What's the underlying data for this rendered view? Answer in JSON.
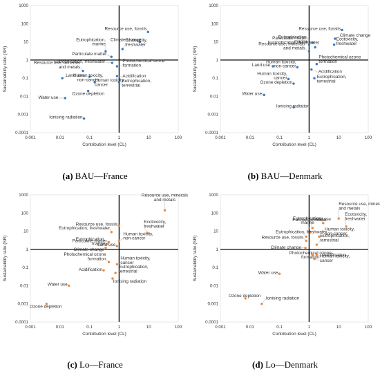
{
  "panels": [
    {
      "caption_letter": "(a)",
      "caption_text": "BAU—France",
      "color": "#3a78c2",
      "chart_data": {
        "type": "scatter",
        "xlabel": "Contribution level (CL)",
        "ylabel": "Sustainability ratio (SR)",
        "xscale": "log",
        "yscale": "log",
        "xlim": [
          0.001,
          100
        ],
        "ylim": [
          0.0001,
          1000
        ],
        "xticks": [
          "0.001",
          "0.01",
          "0.1",
          "1",
          "10",
          "100"
        ],
        "yticks": [
          "0.0001",
          "0.001",
          "0.01",
          "0.1",
          "1",
          "10",
          "100",
          "1000"
        ],
        "points": [
          {
            "label": "Resource use, fossils",
            "x": 9.5,
            "y": 35
          },
          {
            "label": "Climate change",
            "x": 5.0,
            "y": 10
          },
          {
            "label": "Eutrophication, marine",
            "x": 0.35,
            "y": 3
          },
          {
            "label": "Ecotoxicity, freshwater",
            "x": 1.3,
            "y": 4
          },
          {
            "label": "Particulate matter",
            "x": 0.55,
            "y": 1.5
          },
          {
            "label": "Eutrophication, freshwater",
            "x": 0.58,
            "y": 0.7
          },
          {
            "label": "Resource use, minerals and metals",
            "x": 0.06,
            "y": 0.25
          },
          {
            "label": "Photochemical ozone formation",
            "x": 0.85,
            "y": 0.45
          },
          {
            "label": "Land use",
            "x": 0.012,
            "y": 0.1
          },
          {
            "label": "Human toxicity, non-cancer",
            "x": 0.1,
            "y": 0.12
          },
          {
            "label": "Acidification",
            "x": 0.85,
            "y": 0.13
          },
          {
            "label": "Human toxicity, cancer",
            "x": 0.15,
            "y": 0.06
          },
          {
            "label": "Eutrophication, terrestrial",
            "x": 1.0,
            "y": 0.06
          },
          {
            "label": "Water use",
            "x": 0.015,
            "y": 0.008
          },
          {
            "label": "Ozone depletion",
            "x": 0.09,
            "y": 0.02
          },
          {
            "label": "Ionising radiation",
            "x": 0.065,
            "y": 0.0006
          }
        ]
      }
    },
    {
      "caption_letter": "(b)",
      "caption_text": "BAU—Denmark",
      "color": "#3a78c2",
      "chart_data": {
        "type": "scatter",
        "xlabel": "Contribution level (CL)",
        "ylabel": "Sustainability ratio (SR)",
        "xscale": "log",
        "yscale": "log",
        "xlim": [
          0.001,
          100
        ],
        "ylim": [
          0.0001,
          1000
        ],
        "xticks": [
          "0.001",
          "0.01",
          "0.1",
          "1",
          "10",
          "100"
        ],
        "yticks": [
          "0.0001",
          "0.001",
          "0.01",
          "0.1",
          "1",
          "10",
          "100",
          "1000"
        ],
        "points": [
          {
            "label": "Resource use, fossils",
            "x": 13,
            "y": 45
          },
          {
            "label": "Particulate matter",
            "x": 1.3,
            "y": 9
          },
          {
            "label": "Climate change",
            "x": 7.5,
            "y": 15
          },
          {
            "label": "Eutrophication, marine",
            "x": 1.0,
            "y": 7
          },
          {
            "label": "Ecotoxicity, freshwater",
            "x": 7,
            "y": 7
          },
          {
            "label": "Eutrophication, freshwater",
            "x": 1.6,
            "y": 5
          },
          {
            "label": "Resource use, minerals and metals",
            "x": 1.0,
            "y": 3
          },
          {
            "label": "Photochemical ozone formation",
            "x": 1.8,
            "y": 0.6
          },
          {
            "label": "Land use",
            "x": 0.06,
            "y": 0.45
          },
          {
            "label": "Human toxicity, non-cancer",
            "x": 0.4,
            "y": 0.4
          },
          {
            "label": "Acidification",
            "x": 1.2,
            "y": 0.3
          },
          {
            "label": "Human toxicity, cancer",
            "x": 0.2,
            "y": 0.09
          },
          {
            "label": "Ozone depletion",
            "x": 0.3,
            "y": 0.05
          },
          {
            "label": "Eutrophication, terrestrial",
            "x": 1.5,
            "y": 0.1
          },
          {
            "label": "Water use",
            "x": 0.03,
            "y": 0.012
          },
          {
            "label": "Ionising radiation",
            "x": 0.3,
            "y": 0.0025
          }
        ]
      }
    },
    {
      "caption_letter": "(c)",
      "caption_text": "Lo—France",
      "color": "#ee8a3c",
      "chart_data": {
        "type": "scatter",
        "xlabel": "Contribution level (CL)",
        "ylabel": "Sustainability ratio (SR)",
        "xscale": "log",
        "yscale": "log",
        "xlim": [
          0.001,
          100
        ],
        "ylim": [
          0.0001,
          1000
        ],
        "xticks": [
          "0.001",
          "0.01",
          "0.1",
          "1",
          "10",
          "100"
        ],
        "yticks": [
          "0.0001",
          "0.001",
          "0.01",
          "0.1",
          "1",
          "10",
          "100",
          "1000"
        ],
        "points": [
          {
            "label": "Resource use, minerals and metals",
            "x": 35,
            "y": 140
          },
          {
            "label": "Resource use, fossils",
            "x": 1.0,
            "y": 20
          },
          {
            "label": "Ecotoxicity, freshwater",
            "x": 9,
            "y": 8
          },
          {
            "label": "Eutrophication, freshwater",
            "x": 0.55,
            "y": 9
          },
          {
            "label": "Particulate matter",
            "x": 0.45,
            "y": 2.5
          },
          {
            "label": "Eutrophication, marine",
            "x": 0.4,
            "y": 2
          },
          {
            "label": "Climate change",
            "x": 0.35,
            "y": 1.2
          },
          {
            "label": "Land use",
            "x": 0.85,
            "y": 1.5
          },
          {
            "label": "Human toxicity, non-cancer",
            "x": 1.0,
            "y": 3
          },
          {
            "label": "Photochemical ozone formation",
            "x": 0.45,
            "y": 0.2
          },
          {
            "label": "Human toxicity, cancer",
            "x": 0.85,
            "y": 0.15
          },
          {
            "label": "Acidification",
            "x": 0.3,
            "y": 0.07
          },
          {
            "label": "Eutrophication, terrestrial",
            "x": 0.75,
            "y": 0.05
          },
          {
            "label": "Ionising radiation",
            "x": 0.6,
            "y": 0.025
          },
          {
            "label": "Water use",
            "x": 0.02,
            "y": 0.01
          },
          {
            "label": "Ozone depletion",
            "x": 0.0035,
            "y": 0.001
          }
        ]
      }
    },
    {
      "caption_letter": "(d)",
      "caption_text": "Lo—Denmark",
      "color": "#ee8a3c",
      "chart_data": {
        "type": "scatter",
        "xlabel": "Contribution level (CL)",
        "ylabel": "Sustainability ratio (SR)",
        "xscale": "log",
        "yscale": "log",
        "xlim": [
          0.001,
          100
        ],
        "ylim": [
          0.0001,
          1000
        ],
        "xticks": [
          "0.001",
          "0.01",
          "0.1",
          "1",
          "10",
          "100"
        ],
        "yticks": [
          "0.0001",
          "0.001",
          "0.01",
          "0.1",
          "1",
          "10",
          "100",
          "1000"
        ],
        "points": [
          {
            "label": "Resource use, minerals and metals",
            "x": 10,
            "y": 50
          },
          {
            "label": "Ecotoxicity, freshwater",
            "x": 18,
            "y": 18
          },
          {
            "label": "Land use",
            "x": 3.0,
            "y": 28
          },
          {
            "label": "Particulate matter",
            "x": 1.3,
            "y": 15
          },
          {
            "label": "Eutrophication, marine",
            "x": 1.1,
            "y": 9
          },
          {
            "label": "Eutrophication, freshwater",
            "x": 0.8,
            "y": 5
          },
          {
            "label": "Resource use, fossils",
            "x": 0.8,
            "y": 3
          },
          {
            "label": "Human toxicity, non-cancer",
            "x": 2.2,
            "y": 5
          },
          {
            "label": "Eutrophication, terrestrial",
            "x": 1.8,
            "y": 1.8
          },
          {
            "label": "Climate change",
            "x": 0.75,
            "y": 1.2
          },
          {
            "label": "Photochemical ozone formation",
            "x": 1.3,
            "y": 0.5
          },
          {
            "label": "Acidification",
            "x": 1.8,
            "y": 0.5
          },
          {
            "label": "Human toxicity, cancer",
            "x": 1.5,
            "y": 0.3
          },
          {
            "label": "Water use",
            "x": 0.1,
            "y": 0.045
          },
          {
            "label": "Ozone depletion",
            "x": 0.007,
            "y": 0.002
          },
          {
            "label": "Ionising radiation",
            "x": 0.025,
            "y": 0.001
          }
        ]
      }
    }
  ]
}
